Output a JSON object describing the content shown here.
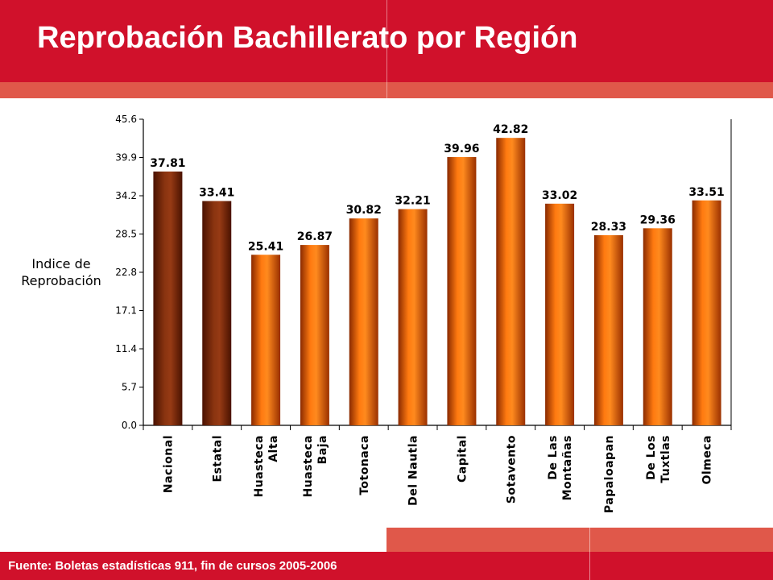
{
  "title": "Reprobación Bachillerato por Región",
  "source": "Fuente: Boletas estadísticas 911, fin de cursos 2005-2006",
  "colors": {
    "header": "#d0112b",
    "stripe": "#e0584a",
    "bar_dark": "#7a2a06",
    "bar_orange": "#f06a08"
  },
  "chart_data": {
    "type": "bar",
    "title": "",
    "xlabel": "",
    "ylabel": "Indice de Reprobación",
    "ylim": [
      0,
      45.6
    ],
    "yticks": [
      "0.0",
      "5.7",
      "11.4",
      "17.1",
      "22.8",
      "28.5",
      "34.2",
      "39.9",
      "45.6"
    ],
    "categories": [
      [
        "Nacional"
      ],
      [
        "Estatal"
      ],
      [
        "Huasteca",
        "Alta"
      ],
      [
        "Huasteca",
        "Baja"
      ],
      [
        "Totonaca"
      ],
      [
        "Del Nautla"
      ],
      [
        "Capital"
      ],
      [
        "Sotavento"
      ],
      [
        "De Las",
        "Montañas"
      ],
      [
        "Papaloapan"
      ],
      [
        "De Los",
        "Tuxtlas"
      ],
      [
        "Olmeca"
      ]
    ],
    "values": [
      37.81,
      33.41,
      25.41,
      26.87,
      30.82,
      32.21,
      39.96,
      42.82,
      33.02,
      28.33,
      29.36,
      33.51
    ],
    "bar_colors": [
      "dark",
      "dark",
      "orange",
      "orange",
      "orange",
      "orange",
      "orange",
      "orange",
      "orange",
      "orange",
      "orange",
      "orange"
    ],
    "grid": false,
    "legend": "none"
  }
}
